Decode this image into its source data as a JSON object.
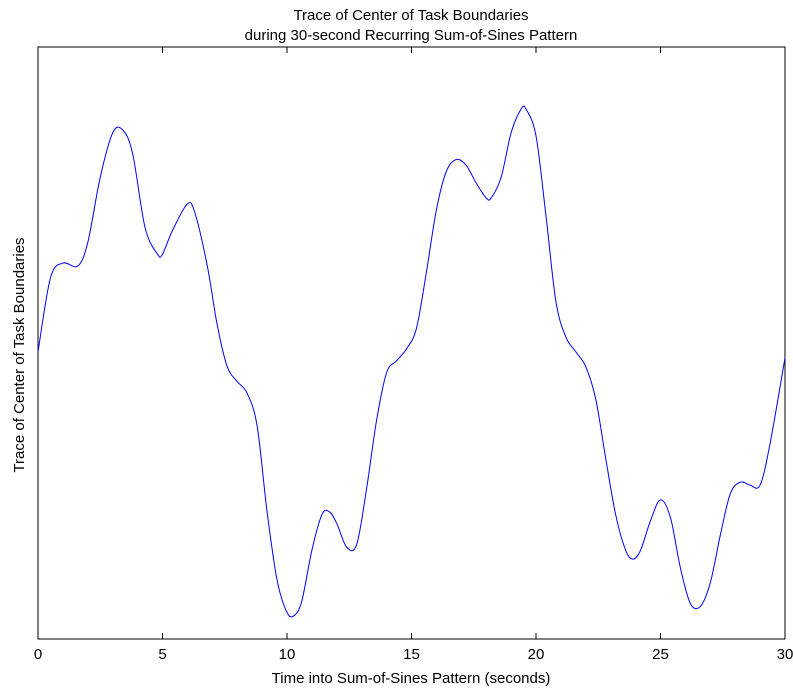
{
  "chart_data": {
    "type": "line",
    "title": [
      "Trace of Center of Task Boundaries",
      "during 30-second Recurring Sum-of-Sines Pattern"
    ],
    "xlabel": "Time into Sum-of-Sines Pattern (seconds)",
    "ylabel": "Trace of Center of Task Boundaries",
    "xlim": [
      0,
      30
    ],
    "ylim": [
      0,
      1
    ],
    "x_ticks": [
      0,
      5,
      10,
      15,
      20,
      25,
      30
    ],
    "x_tick_labels": [
      "0",
      "5",
      "10",
      "15",
      "20",
      "25",
      "30"
    ],
    "y_ticks_shown": false,
    "grid": false,
    "legend": "none",
    "series": [
      {
        "color": "#0000ff",
        "x": [
          0,
          0.5,
          1.0,
          1.6,
          2.0,
          2.5,
          3.0,
          3.4,
          3.8,
          4.3,
          4.8,
          5.0,
          5.4,
          6.0,
          6.3,
          6.8,
          7.2,
          7.6,
          8.0,
          8.4,
          8.8,
          9.2,
          9.6,
          10.0,
          10.3,
          10.6,
          11.0,
          11.4,
          11.7,
          12.0,
          12.4,
          12.8,
          13.2,
          13.6,
          14.0,
          14.4,
          14.8,
          15.2,
          15.6,
          16.0,
          16.4,
          16.8,
          17.2,
          17.6,
          18.0,
          18.2,
          18.6,
          19.0,
          19.4,
          19.6,
          20.0,
          20.4,
          20.8,
          21.2,
          21.6,
          22.0,
          22.4,
          22.8,
          23.2,
          23.6,
          23.9,
          24.2,
          24.6,
          25.0,
          25.4,
          25.8,
          26.2,
          26.6,
          27.0,
          27.4,
          27.8,
          28.2,
          28.6,
          29.0,
          29.4,
          30.0
        ],
        "y": [
          0.485,
          0.61,
          0.635,
          0.63,
          0.67,
          0.78,
          0.855,
          0.86,
          0.82,
          0.695,
          0.65,
          0.65,
          0.69,
          0.735,
          0.72,
          0.63,
          0.53,
          0.46,
          0.435,
          0.415,
          0.36,
          0.215,
          0.1,
          0.045,
          0.04,
          0.065,
          0.15,
          0.21,
          0.215,
          0.195,
          0.155,
          0.16,
          0.255,
          0.37,
          0.45,
          0.47,
          0.49,
          0.525,
          0.62,
          0.725,
          0.79,
          0.81,
          0.8,
          0.77,
          0.745,
          0.745,
          0.78,
          0.855,
          0.895,
          0.895,
          0.85,
          0.715,
          0.57,
          0.51,
          0.485,
          0.46,
          0.405,
          0.305,
          0.21,
          0.15,
          0.135,
          0.15,
          0.2,
          0.235,
          0.205,
          0.12,
          0.06,
          0.055,
          0.095,
          0.175,
          0.245,
          0.265,
          0.26,
          0.26,
          0.33,
          0.475
        ]
      }
    ]
  }
}
